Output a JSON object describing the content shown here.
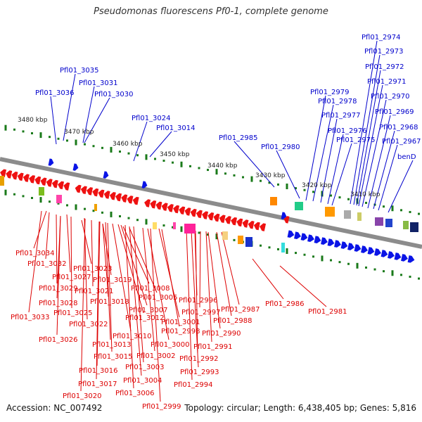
{
  "title": "Pseudomonas fluorescens Pf0-1, complete genome",
  "footer": {
    "accession": "Accession: NC_007492",
    "summary": "Topology: circular; Length: 6,438,405 bp; Genes: 5,816"
  },
  "colors": {
    "forward_gene": "#0a14e6",
    "reverse_gene": "#ee1111",
    "tick": "#1a7a1a",
    "backbone": "#8c8c8c",
    "label_forward": "#0000cc",
    "label_reverse": "#dd0000"
  },
  "scale_labels": [
    "3410 kbp",
    "3420 kbp",
    "3430 kbp",
    "3440 kbp",
    "3450 kbp",
    "3460 kbp",
    "3470 kbp",
    "3480 kbp"
  ],
  "forward_labels": [
    "Pfl01_3036",
    "Pfl01_3035",
    "Pfl01_3031",
    "Pfl01_3030",
    "Pfl01_3024",
    "Pfl01_3014",
    "Pfl01_2985",
    "Pfl01_2980",
    "Pfl01_2979",
    "Pfl01_2978",
    "Pfl01_2977",
    "Pfl01_2976",
    "Pfl01_2975",
    "Pfl01_2974",
    "Pfl01_2973",
    "Pfl01_2972",
    "Pfl01_2971",
    "Pfl01_2970",
    "Pfl01_2969",
    "Pfl01_2968",
    "Pfl01_2967",
    "benD"
  ],
  "reverse_labels": [
    "Pfl01_3034",
    "Pfl01_3032",
    "Pfl01_3023",
    "Pfl01_3027",
    "Pfl01_3029",
    "Pfl01_3019",
    "Pfl01_3021",
    "Pfl01_3008",
    "Pfl01_3028",
    "Pfl01_3018",
    "Pfl01_3005",
    "Pfl01_3025",
    "Pfl01_3007",
    "Pfl01_3033",
    "Pfl01_3022",
    "Pfl01_3012",
    "Pfl01_3001",
    "Pfl01_3010",
    "Pfl01_3026",
    "Pfl01_3013",
    "Pfl01_3000",
    "Pfl01_3002",
    "Pfl01_3015",
    "Pfl01_3003",
    "Pfl01_3016",
    "Pfl01_3004",
    "Pfl01_3017",
    "Pfl01_3006",
    "Pfl01_3020",
    "Pfl01_2999",
    "Pfl01_2996",
    "Pfl01_2997",
    "Pfl01_2998",
    "Pfl01_2987",
    "Pfl01_2988",
    "Pfl01_2990",
    "Pfl01_2991",
    "Pfl01_2992",
    "Pfl01_2993",
    "Pfl01_2994",
    "Pfl01_2986",
    "Pfl01_2981"
  ]
}
